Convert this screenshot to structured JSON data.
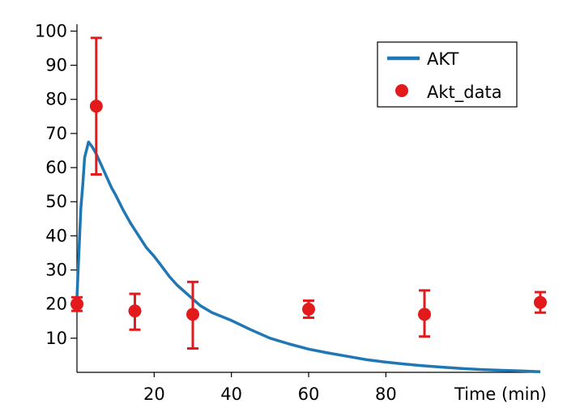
{
  "chart_data": {
    "type": "line",
    "xlabel": "Time (min)",
    "ylabel": "",
    "xlim": [
      0,
      120
    ],
    "ylim": [
      0,
      102
    ],
    "x_ticks": [
      20,
      40,
      60,
      80
    ],
    "x_tick_labels": [
      "20",
      "40",
      "60",
      "80"
    ],
    "y_ticks": [
      10,
      20,
      30,
      40,
      50,
      60,
      70,
      80,
      90,
      100
    ],
    "y_tick_labels": [
      "10",
      "20",
      "30",
      "40",
      "50",
      "60",
      "70",
      "80",
      "90",
      "100"
    ],
    "grid": false,
    "legend": "top-right",
    "series": [
      {
        "name": "AKT",
        "kind": "line",
        "color": "#1f77b4",
        "x": [
          0,
          0.5,
          1,
          1.5,
          2,
          3,
          4,
          5,
          6,
          7,
          8,
          9,
          10,
          12,
          14,
          16,
          18,
          20,
          22,
          24,
          26,
          28,
          30,
          32,
          35,
          40,
          45,
          50,
          55,
          60,
          65,
          70,
          75,
          80,
          85,
          90,
          95,
          100,
          105,
          110,
          115,
          120
        ],
        "y": [
          22,
          35,
          48,
          55,
          63,
          67.5,
          66,
          64,
          61.5,
          59,
          56.5,
          54,
          52,
          47.5,
          43.5,
          40,
          36.5,
          34,
          31,
          28,
          25.5,
          23.5,
          21.5,
          19.5,
          17.5,
          15.2,
          12.5,
          10,
          8.3,
          6.8,
          5.7,
          4.7,
          3.7,
          3.0,
          2.4,
          1.9,
          1.5,
          1.1,
          0.8,
          0.6,
          0.4,
          0.2
        ]
      },
      {
        "name": "Akt_data",
        "kind": "scatter",
        "color": "#e31a1c",
        "x": [
          0,
          5,
          15,
          30,
          60,
          90,
          120
        ],
        "y": [
          20,
          78,
          18,
          17,
          18.5,
          17,
          20.5
        ],
        "err_low": [
          18,
          58,
          12.5,
          7,
          16,
          10.5,
          17.5
        ],
        "err_high": [
          22,
          98,
          23,
          26.5,
          21,
          24,
          23.5
        ]
      }
    ]
  }
}
